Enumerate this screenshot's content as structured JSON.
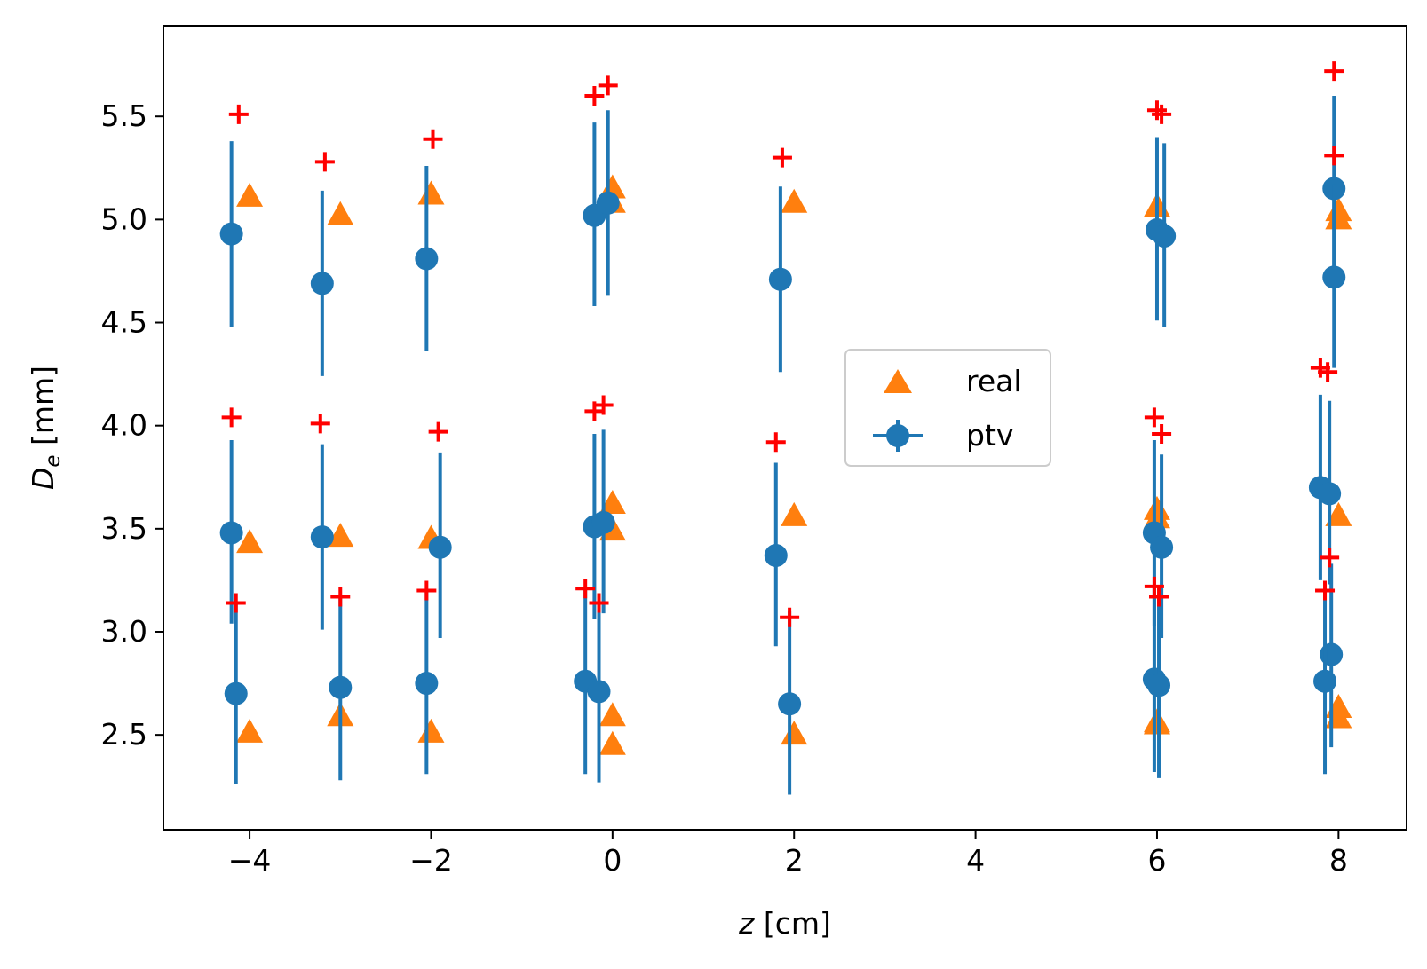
{
  "chart_data": {
    "type": "scatter",
    "title": "",
    "xlabel_var": "z",
    "xlabel_unit": " [cm]",
    "ylabel_var": "D",
    "ylabel_sub": "e",
    "ylabel_unit": " [mm]",
    "xlim": [
      -4.95,
      8.75
    ],
    "ylim": [
      2.04,
      5.94
    ],
    "xticks": [
      -4,
      -2,
      0,
      2,
      4,
      6,
      8
    ],
    "xtick_labels": [
      "−4",
      "−2",
      "0",
      "2",
      "4",
      "6",
      "8"
    ],
    "yticks": [
      2.5,
      3.0,
      3.5,
      4.0,
      4.5,
      5.0,
      5.5
    ],
    "ytick_labels": [
      "2.5",
      "3.0",
      "3.5",
      "4.0",
      "4.5",
      "5.0",
      "5.5"
    ],
    "grid": false,
    "legend_position": "center-right",
    "colors": {
      "real": "#ff7f0e",
      "ptv": "#1f77b4",
      "plus": "#ff0000"
    },
    "series": [
      {
        "name": "real",
        "marker": "triangle",
        "points": [
          {
            "x": -4.0,
            "y": 5.11
          },
          {
            "x": -4.0,
            "y": 3.43
          },
          {
            "x": -4.0,
            "y": 2.51
          },
          {
            "x": -3.0,
            "y": 5.02
          },
          {
            "x": -3.0,
            "y": 3.46
          },
          {
            "x": -3.0,
            "y": 2.59
          },
          {
            "x": -2.0,
            "y": 5.12
          },
          {
            "x": -2.0,
            "y": 3.45
          },
          {
            "x": -2.0,
            "y": 2.51
          },
          {
            "x": 0.0,
            "y": 5.15
          },
          {
            "x": 0.0,
            "y": 5.08
          },
          {
            "x": 0.0,
            "y": 3.62
          },
          {
            "x": 0.0,
            "y": 3.49
          },
          {
            "x": 0.0,
            "y": 2.59
          },
          {
            "x": 0.0,
            "y": 2.45
          },
          {
            "x": 2.0,
            "y": 5.08
          },
          {
            "x": 2.0,
            "y": 3.56
          },
          {
            "x": 2.0,
            "y": 2.5
          },
          {
            "x": 6.0,
            "y": 5.06
          },
          {
            "x": 6.0,
            "y": 3.59
          },
          {
            "x": 6.0,
            "y": 3.55
          },
          {
            "x": 6.0,
            "y": 2.56
          },
          {
            "x": 6.0,
            "y": 2.55
          },
          {
            "x": 8.0,
            "y": 5.04
          },
          {
            "x": 8.0,
            "y": 5.0
          },
          {
            "x": 8.0,
            "y": 3.56
          },
          {
            "x": 8.0,
            "y": 2.63
          },
          {
            "x": 8.0,
            "y": 2.58
          }
        ]
      },
      {
        "name": "ptv",
        "marker": "circle-errorbar",
        "points": [
          {
            "x": -4.2,
            "y": 4.93,
            "lo": 4.48,
            "hi": 5.38
          },
          {
            "x": -4.2,
            "y": 3.48,
            "lo": 3.04,
            "hi": 3.93
          },
          {
            "x": -4.15,
            "y": 2.7,
            "lo": 2.26,
            "hi": 3.14
          },
          {
            "x": -3.2,
            "y": 4.69,
            "lo": 4.24,
            "hi": 5.14
          },
          {
            "x": -3.2,
            "y": 3.46,
            "lo": 3.01,
            "hi": 3.91
          },
          {
            "x": -3.0,
            "y": 2.73,
            "lo": 2.28,
            "hi": 3.17
          },
          {
            "x": -2.05,
            "y": 4.81,
            "lo": 4.36,
            "hi": 5.26
          },
          {
            "x": -1.9,
            "y": 3.41,
            "lo": 2.97,
            "hi": 3.87
          },
          {
            "x": -2.05,
            "y": 2.75,
            "lo": 2.31,
            "hi": 3.2
          },
          {
            "x": -0.2,
            "y": 5.02,
            "lo": 4.58,
            "hi": 5.47
          },
          {
            "x": -0.05,
            "y": 5.08,
            "lo": 4.63,
            "hi": 5.53
          },
          {
            "x": -0.2,
            "y": 3.51,
            "lo": 3.06,
            "hi": 3.96
          },
          {
            "x": -0.1,
            "y": 3.53,
            "lo": 3.09,
            "hi": 3.98
          },
          {
            "x": -0.3,
            "y": 2.76,
            "lo": 2.31,
            "hi": 3.21
          },
          {
            "x": -0.15,
            "y": 2.71,
            "lo": 2.27,
            "hi": 3.15
          },
          {
            "x": 1.85,
            "y": 4.71,
            "lo": 4.26,
            "hi": 5.16
          },
          {
            "x": 1.8,
            "y": 3.37,
            "lo": 2.93,
            "hi": 3.82
          },
          {
            "x": 1.95,
            "y": 2.65,
            "lo": 2.21,
            "hi": 3.1
          },
          {
            "x": 6.0,
            "y": 4.95,
            "lo": 4.51,
            "hi": 5.4
          },
          {
            "x": 6.08,
            "y": 4.92,
            "lo": 4.48,
            "hi": 5.37
          },
          {
            "x": 5.97,
            "y": 3.48,
            "lo": 3.03,
            "hi": 3.93
          },
          {
            "x": 6.05,
            "y": 3.41,
            "lo": 2.97,
            "hi": 3.86
          },
          {
            "x": 5.97,
            "y": 2.77,
            "lo": 2.32,
            "hi": 3.22
          },
          {
            "x": 6.02,
            "y": 2.74,
            "lo": 2.29,
            "hi": 3.18
          },
          {
            "x": 7.95,
            "y": 5.15,
            "lo": 4.7,
            "hi": 5.6
          },
          {
            "x": 7.95,
            "y": 4.72,
            "lo": 4.28,
            "hi": 5.17
          },
          {
            "x": 7.8,
            "y": 3.7,
            "lo": 3.25,
            "hi": 4.15
          },
          {
            "x": 7.9,
            "y": 3.67,
            "lo": 3.23,
            "hi": 4.12
          },
          {
            "x": 7.92,
            "y": 2.89,
            "lo": 2.44,
            "hi": 3.33
          },
          {
            "x": 7.85,
            "y": 2.76,
            "lo": 2.31,
            "hi": 3.2
          }
        ]
      },
      {
        "marker": "plus",
        "points": [
          {
            "x": -4.12,
            "y": 5.51
          },
          {
            "x": -4.2,
            "y": 4.04
          },
          {
            "x": -4.15,
            "y": 3.14
          },
          {
            "x": -3.17,
            "y": 5.28
          },
          {
            "x": -3.22,
            "y": 4.01
          },
          {
            "x": -3.0,
            "y": 3.17
          },
          {
            "x": -1.98,
            "y": 5.39
          },
          {
            "x": -1.92,
            "y": 3.97
          },
          {
            "x": -2.05,
            "y": 3.2
          },
          {
            "x": -0.2,
            "y": 5.6
          },
          {
            "x": -0.05,
            "y": 5.65
          },
          {
            "x": -0.2,
            "y": 4.07
          },
          {
            "x": -0.1,
            "y": 4.1
          },
          {
            "x": -0.3,
            "y": 3.21
          },
          {
            "x": -0.15,
            "y": 3.14
          },
          {
            "x": 1.87,
            "y": 5.3
          },
          {
            "x": 1.8,
            "y": 3.92
          },
          {
            "x": 1.95,
            "y": 3.07
          },
          {
            "x": 6.0,
            "y": 5.53
          },
          {
            "x": 6.05,
            "y": 5.51
          },
          {
            "x": 5.97,
            "y": 4.04
          },
          {
            "x": 6.05,
            "y": 3.96
          },
          {
            "x": 5.97,
            "y": 3.22
          },
          {
            "x": 6.02,
            "y": 3.17
          },
          {
            "x": 7.95,
            "y": 5.72
          },
          {
            "x": 7.95,
            "y": 5.31
          },
          {
            "x": 7.8,
            "y": 4.28
          },
          {
            "x": 7.88,
            "y": 4.26
          },
          {
            "x": 7.9,
            "y": 3.36
          },
          {
            "x": 7.85,
            "y": 3.2
          }
        ]
      }
    ]
  }
}
